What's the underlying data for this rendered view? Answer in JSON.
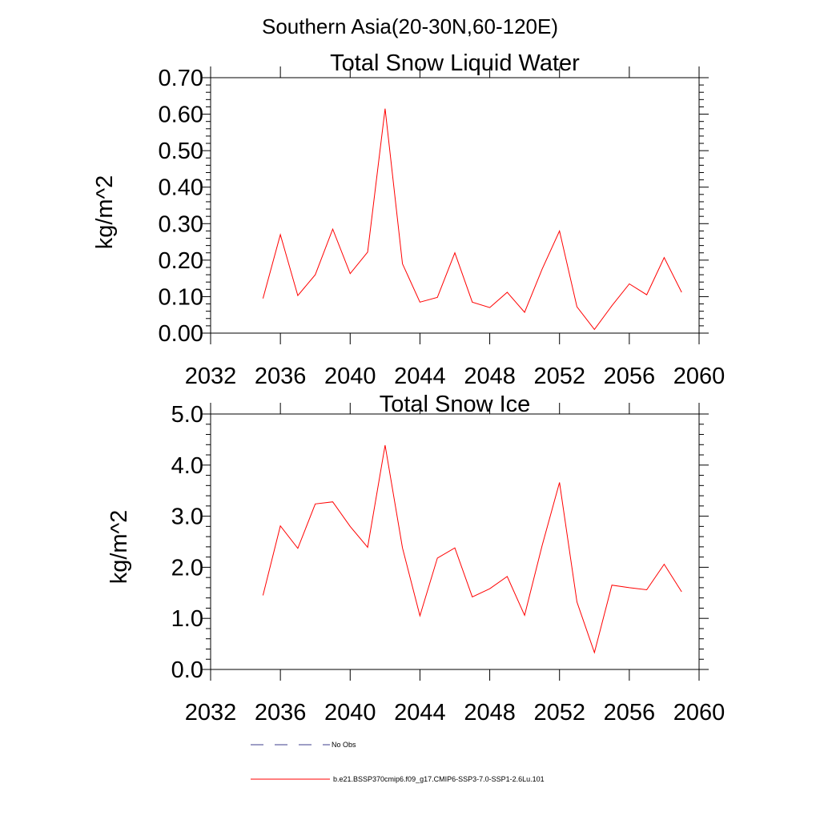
{
  "figure": {
    "suptitle": "Southern Asia(20-30N,60-120E)"
  },
  "chart_data": [
    {
      "type": "line",
      "title": "Total Snow Liquid Water",
      "xlabel": "",
      "ylabel": "kg/m^2",
      "xlim": [
        2032,
        2060
      ],
      "ylim": [
        0,
        0.7
      ],
      "x_ticks": [
        2032,
        2036,
        2040,
        2044,
        2048,
        2052,
        2056,
        2060
      ],
      "x_tick_labels": [
        "2032",
        "2036",
        "2040",
        "2044",
        "2048",
        "2052",
        "2056",
        "2060"
      ],
      "y_ticks": [
        0,
        0.1,
        0.2,
        0.3,
        0.4,
        0.5,
        0.6,
        0.7
      ],
      "y_tick_labels": [
        "0.00",
        "0.10",
        "0.20",
        "0.30",
        "0.40",
        "0.50",
        "0.60",
        "0.70"
      ],
      "grid": false,
      "series": [
        {
          "name": "b.e21.BSSP370cmip6.f09_g17.CMIP6-SSP3-7.0-SSP1-2.6Lu.101",
          "color": "#ff0000",
          "x": [
            2035,
            2036,
            2037,
            2038,
            2039,
            2040,
            2041,
            2042,
            2043,
            2044,
            2045,
            2046,
            2047,
            2048,
            2049,
            2050,
            2051,
            2052,
            2053,
            2054,
            2055,
            2056,
            2057,
            2058,
            2059
          ],
          "y": [
            0.095,
            0.27,
            0.103,
            0.16,
            0.285,
            0.163,
            0.222,
            0.615,
            0.19,
            0.085,
            0.098,
            0.22,
            0.085,
            0.07,
            0.112,
            0.057,
            0.175,
            0.28,
            0.072,
            0.01,
            0.075,
            0.135,
            0.105,
            0.207,
            0.112
          ]
        }
      ]
    },
    {
      "type": "line",
      "title": "Total Snow Ice",
      "xlabel": "",
      "ylabel": "kg/m^2",
      "xlim": [
        2032,
        2060
      ],
      "ylim": [
        0,
        5
      ],
      "x_ticks": [
        2032,
        2036,
        2040,
        2044,
        2048,
        2052,
        2056,
        2060
      ],
      "x_tick_labels": [
        "2032",
        "2036",
        "2040",
        "2044",
        "2048",
        "2052",
        "2056",
        "2060"
      ],
      "y_ticks": [
        0,
        1,
        2,
        3,
        4,
        5
      ],
      "y_tick_labels": [
        "0.0",
        "1.0",
        "2.0",
        "3.0",
        "4.0",
        "5.0"
      ],
      "grid": false,
      "series": [
        {
          "name": "b.e21.BSSP370cmip6.f09_g17.CMIP6-SSP3-7.0-SSP1-2.6Lu.101",
          "color": "#ff0000",
          "x": [
            2035,
            2036,
            2037,
            2038,
            2039,
            2040,
            2041,
            2042,
            2043,
            2044,
            2045,
            2046,
            2047,
            2048,
            2049,
            2050,
            2051,
            2052,
            2053,
            2054,
            2055,
            2056,
            2057,
            2058,
            2059
          ],
          "y": [
            1.45,
            2.81,
            2.37,
            3.24,
            3.28,
            2.8,
            2.39,
            4.39,
            2.38,
            1.05,
            2.18,
            2.38,
            1.42,
            1.58,
            1.82,
            1.06,
            2.42,
            3.66,
            1.32,
            0.33,
            1.65,
            1.6,
            1.56,
            2.06,
            1.52
          ]
        }
      ]
    }
  ],
  "legend": {
    "placement": "bottom-left",
    "entries": [
      {
        "label": "No Obs",
        "color": "#3c3c8c",
        "style": "dashed"
      },
      {
        "label": "b.e21.BSSP370cmip6.f09_g17.CMIP6-SSP3-7.0-SSP1-2.6Lu.101",
        "color": "#ff0000",
        "style": "solid"
      }
    ]
  }
}
